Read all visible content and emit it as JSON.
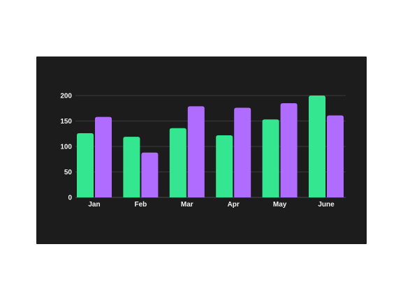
{
  "chart_data": {
    "type": "bar",
    "categories": [
      "Jan",
      "Feb",
      "Mar",
      "Apr",
      "May",
      "June"
    ],
    "series": [
      {
        "values": [
          126,
          119,
          136,
          122,
          153,
          200
        ]
      },
      {
        "values": [
          158,
          88,
          179,
          176,
          185,
          161
        ]
      }
    ],
    "yticks": [
      0,
      50,
      100,
      150,
      200
    ],
    "ylim": [
      0,
      200
    ],
    "grid": true,
    "legend": "none",
    "colors": {
      "background": "#1c1c1c",
      "series_1": "#33e68f",
      "series_2": "#b06bff",
      "gridline": "#3a3a3a",
      "text": "#f2f2f2"
    }
  }
}
